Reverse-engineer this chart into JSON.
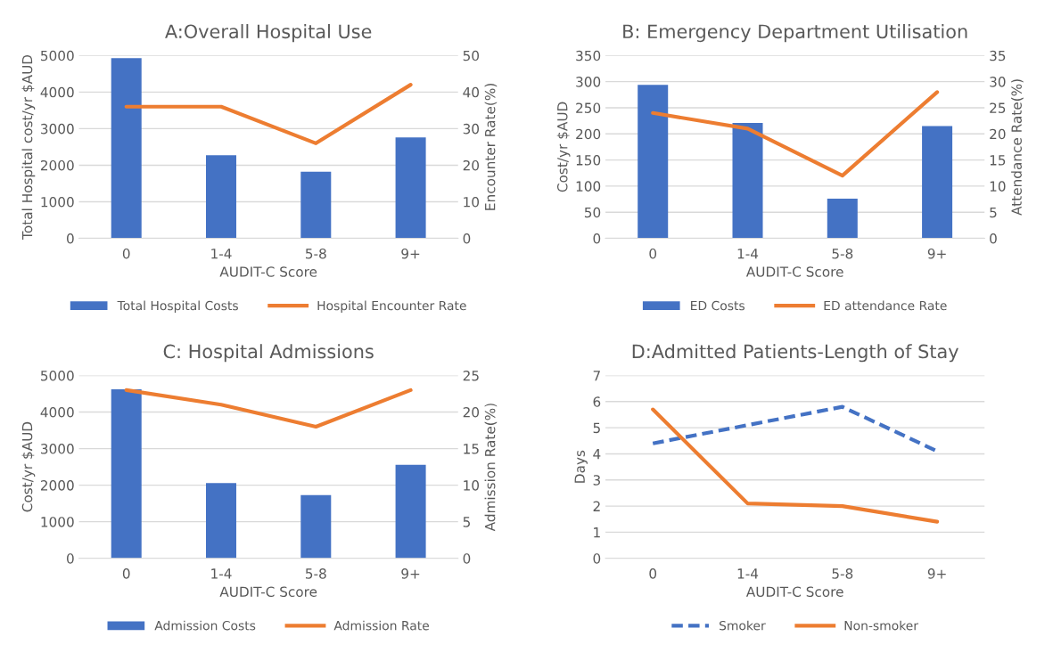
{
  "chart_data": [
    {
      "type": "bar",
      "title": "A:Overall Hospital Use",
      "xlabel": "AUDIT-C Score",
      "ylabel": "Total Hospital cost/yr $AUD",
      "y2label": "Encounter Rate(%)",
      "categories": [
        "0",
        "1-4",
        "5-8",
        "9+"
      ],
      "series": [
        {
          "name": "Total Hospital Costs",
          "color": "#4472c4",
          "values": [
            4930,
            2270,
            1820,
            2760
          ]
        },
        {
          "name": "Hospital Encounter Rate",
          "color": "#ed7d31",
          "type": "line",
          "axis": "y2",
          "values": [
            36,
            36,
            26,
            42
          ]
        }
      ],
      "ylim": [
        0,
        5000
      ],
      "yticks": [
        0,
        1000,
        2000,
        3000,
        4000,
        5000
      ],
      "y2lim": [
        0,
        50
      ],
      "y2ticks": [
        0,
        10,
        20,
        30,
        40,
        50
      ],
      "grid": "y",
      "legend": "bottom"
    },
    {
      "type": "bar",
      "title": "B: Emergency Department Utilisation",
      "xlabel": "AUDIT-C Score",
      "ylabel": "Cost/yr $AUD",
      "y2label": "Attendance Rate(%)",
      "categories": [
        "0",
        "1-4",
        "5-8",
        "9+"
      ],
      "series": [
        {
          "name": "ED Costs",
          "color": "#4472c4",
          "values": [
            294,
            221,
            76,
            215
          ]
        },
        {
          "name": "ED attendance Rate",
          "color": "#ed7d31",
          "type": "line",
          "axis": "y2",
          "values": [
            24,
            21,
            12,
            28
          ]
        }
      ],
      "ylim": [
        0,
        350
      ],
      "yticks": [
        0,
        50,
        100,
        150,
        200,
        250,
        300,
        350
      ],
      "y2lim": [
        0,
        35
      ],
      "y2ticks": [
        0,
        5,
        10,
        15,
        20,
        25,
        30,
        35
      ],
      "grid": "y",
      "legend": "bottom"
    },
    {
      "type": "bar",
      "title": "C: Hospital Admissions",
      "xlabel": "AUDIT-C Score",
      "ylabel": "Cost/yr $AUD",
      "y2label": "Admission Rate(%)",
      "categories": [
        "0",
        "1-4",
        "5-8",
        "9+"
      ],
      "series": [
        {
          "name": "Admission Costs",
          "color": "#4472c4",
          "values": [
            4620,
            2060,
            1730,
            2560
          ]
        },
        {
          "name": "Admission Rate",
          "color": "#ed7d31",
          "type": "line",
          "axis": "y2",
          "values": [
            23,
            21,
            18,
            23
          ]
        }
      ],
      "ylim": [
        0,
        5000
      ],
      "yticks": [
        0,
        1000,
        2000,
        3000,
        4000,
        5000
      ],
      "y2lim": [
        0,
        25
      ],
      "y2ticks": [
        0,
        5,
        10,
        15,
        20,
        25
      ],
      "grid": "y",
      "legend": "bottom"
    },
    {
      "type": "line",
      "title": "D:Admitted Patients-Length of Stay",
      "xlabel": "AUDIT-C Score",
      "ylabel": "Days",
      "categories": [
        "0",
        "1-4",
        "5-8",
        "9+"
      ],
      "series": [
        {
          "name": "Smoker",
          "color": "#4472c4",
          "line_style": "dashed",
          "values": [
            4.4,
            5.1,
            5.8,
            4.1
          ]
        },
        {
          "name": "Non-smoker",
          "color": "#ed7d31",
          "line_style": "solid",
          "values": [
            5.7,
            2.1,
            2.0,
            1.4
          ]
        }
      ],
      "ylim": [
        0,
        7
      ],
      "yticks": [
        0,
        1,
        2,
        3,
        4,
        5,
        6,
        7
      ],
      "grid": "y",
      "legend": "bottom"
    }
  ]
}
